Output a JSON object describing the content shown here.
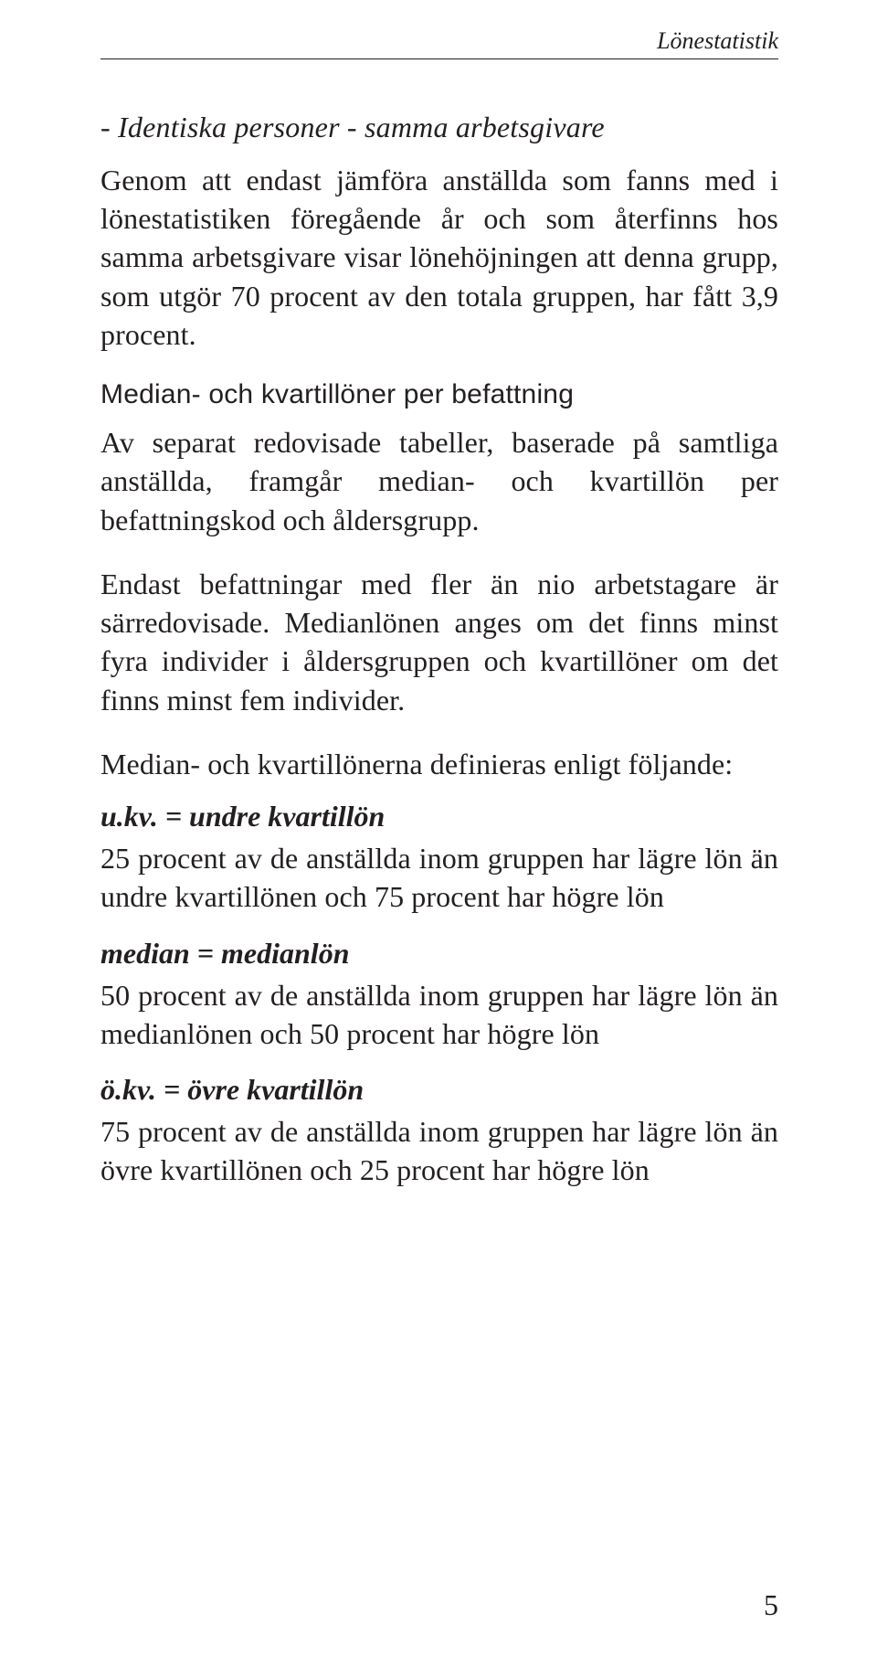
{
  "header": {
    "running_head": "Lönestatistik"
  },
  "section1": {
    "heading": "- Identiska personer - samma arbetsgivare",
    "p1": "Genom att endast jämföra anställda som fanns med i lönestatistiken föregående år och som återfinns hos samma arbetsgivare visar lönehöjningen att denna grupp, som utgör 70 procent av den totala gruppen, har fått 3,9 procent."
  },
  "section2": {
    "heading": "Median- och kvartillöner per befattning",
    "p1": "Av separat redovisade tabeller, baserade på samtliga anställda, framgår median- och kvartillön per befattningskod och åldersgrupp.",
    "p2": "Endast befattningar med fler än nio arbetstagare är särredovisade. Medianlönen anges om det finns minst fyra individer i åldersgruppen och kvartillöner om det finns minst fem individer.",
    "p3": "Median- och kvartillönerna definieras enligt följande:"
  },
  "definitions": [
    {
      "term": "u.kv. = undre kvartillön",
      "body": "25 procent av de anställda inom gruppen har lägre lön än undre kvartillönen och 75 procent har högre lön"
    },
    {
      "term": "median = medianlön",
      "body": "50 procent av de anställda inom gruppen har lägre lön än medianlönen och 50 procent har högre lön"
    },
    {
      "term": "ö.kv. = övre kvartillön",
      "body": "75 procent av de anställda inom gruppen har lägre lön än övre kvartillönen och 25 procent har högre lön"
    }
  ],
  "page_number": "5",
  "style": {
    "body_font_size_pt": 24,
    "heading_font_size_pt": 22,
    "text_color": "#231f20",
    "background_color": "#ffffff",
    "rule_color": "#231f20"
  }
}
